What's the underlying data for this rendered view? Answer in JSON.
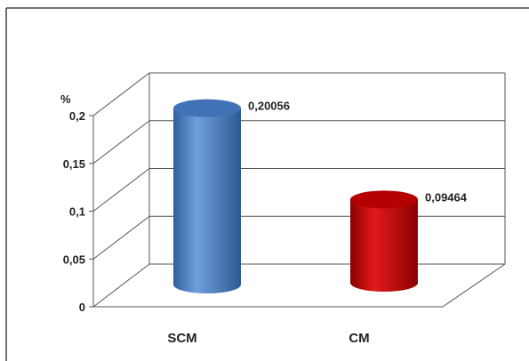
{
  "chart_data": {
    "type": "bar",
    "style": "3d-cylinder",
    "categories": [
      "SCM",
      "CM"
    ],
    "values": [
      0.20056,
      0.09464
    ],
    "data_labels": [
      "0,20056",
      "0,09464"
    ],
    "colors": [
      "#4F81BD",
      "#C00000"
    ],
    "y_unit_label": "%",
    "ylim": [
      0,
      0.2
    ],
    "y_ticks": [
      0,
      0.05,
      0.1,
      0.15,
      0.2
    ],
    "y_tick_labels": [
      "0",
      "0,05",
      "0,1",
      "0,15",
      "0,2"
    ],
    "grid": true,
    "legend": "none",
    "title": "",
    "xlabel": "",
    "ylabel": ""
  }
}
